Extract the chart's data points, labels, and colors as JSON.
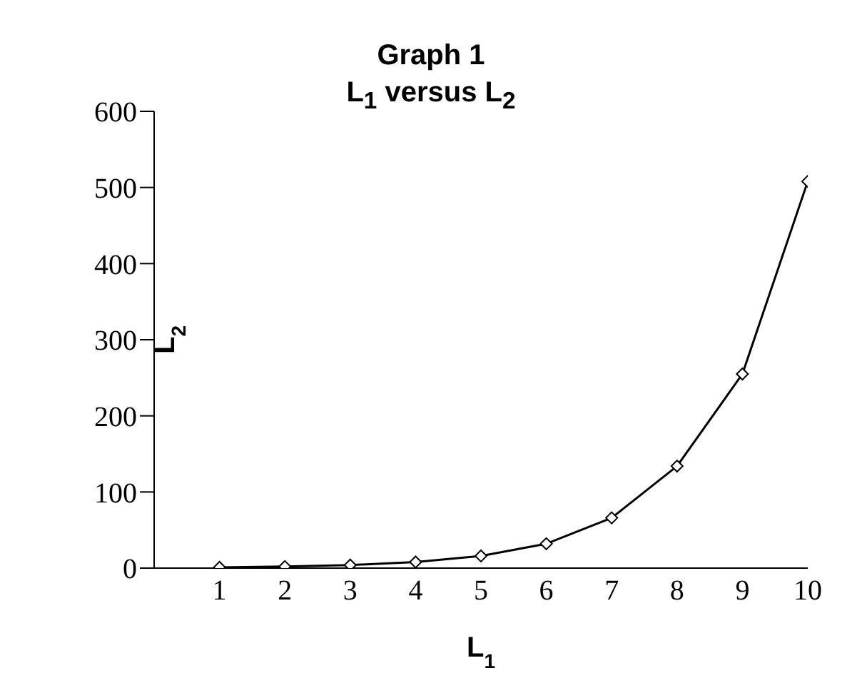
{
  "chart_data": {
    "type": "line",
    "title": "Graph 1",
    "subtitle": "L$_{1}$ versus L$_{2}$",
    "xlabel": "L$_{1}$",
    "ylabel": "L$_{2}$",
    "x": [
      1,
      2,
      3,
      4,
      5,
      6,
      7,
      8,
      9,
      10
    ],
    "series": [
      {
        "color": "#000000",
        "values": [
          1,
          2,
          4,
          8,
          16,
          32,
          66,
          134,
          255,
          508
        ]
      }
    ],
    "xlim": [
      0,
      10
    ],
    "xticks": [
      1,
      2,
      3,
      4,
      5,
      6,
      7,
      8,
      9,
      10
    ],
    "ylim": [
      0,
      600
    ],
    "yticks": [
      0,
      100,
      200,
      300,
      400,
      500,
      600
    ],
    "grid": false,
    "legend": false,
    "marker": "diamond",
    "line_style": "solid"
  }
}
